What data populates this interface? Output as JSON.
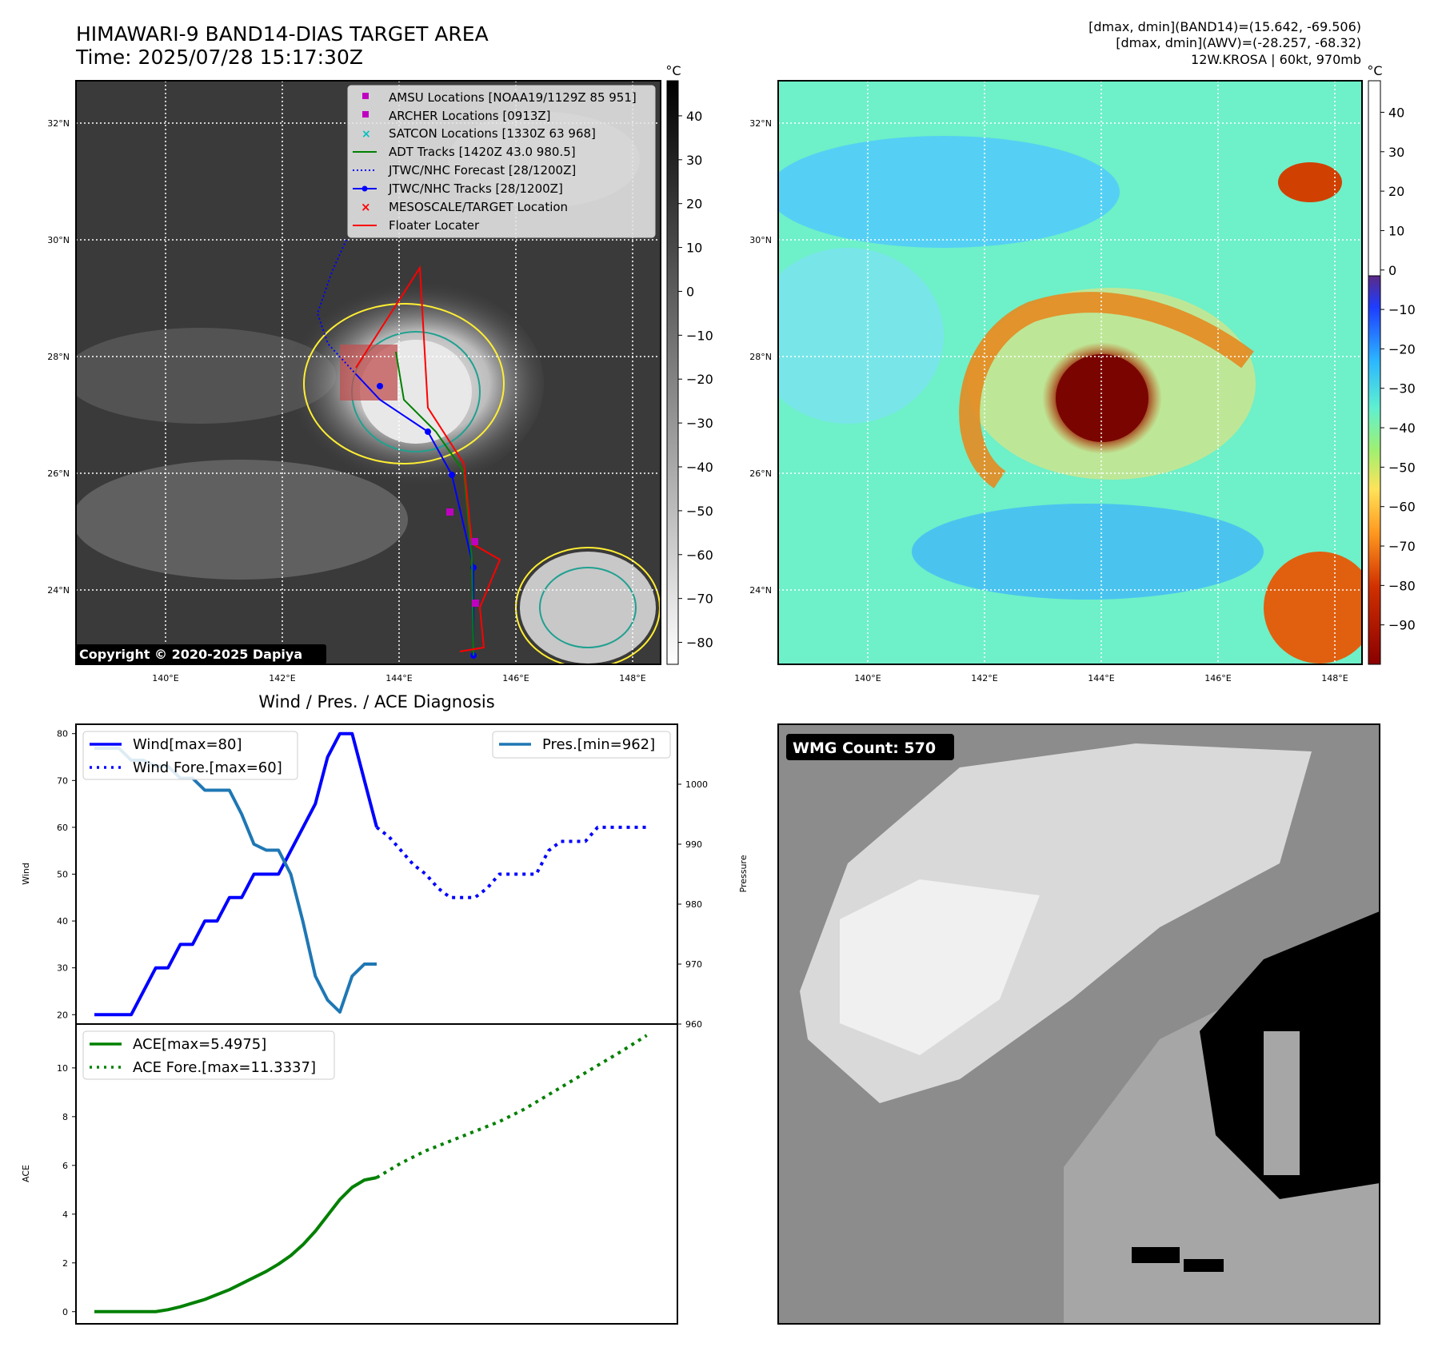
{
  "header": {
    "title": "HIMAWARI-9 BAND14-DIAS TARGET AREA",
    "time": "Time: 2025/07/28 15:17:30Z",
    "info_line1": "[dmax, dmin](BAND14)=(15.642, -69.506)",
    "info_line2": "[dmax, dmin](AWV)=(-28.257, -68.32)",
    "info_line3": "12W.KROSA | 60kt, 970mb"
  },
  "colors": {
    "wind": "#0000ff",
    "pressure": "#1f77b4",
    "ace": "#008000",
    "track_red": "#ff0000",
    "forecast_blue": "#0000ff",
    "adt_green": "#008000",
    "amsu_magenta": "#c000c0",
    "satcon_cyan": "#00c0c0"
  },
  "map_left": {
    "lat_labels": [
      "32°N",
      "30°N",
      "28°N",
      "26°N",
      "24°N"
    ],
    "lon_labels": [
      "140°E",
      "142°E",
      "144°E",
      "146°E",
      "148°E"
    ],
    "colorbar_unit": "°C",
    "colorbar_ticks": [
      "40",
      "30",
      "20",
      "10",
      "0",
      "−10",
      "−20",
      "−30",
      "−40",
      "−50",
      "−60",
      "−70",
      "−80"
    ],
    "copyright": "Copyright © 2020-2025 Dapiya",
    "legend": [
      "AMSU Locations [NOAA19/1129Z 85 951]",
      "ARCHER Locations [0913Z]",
      "SATCON Locations [1330Z 63 968]",
      "ADT Tracks [1420Z 43.0 980.5]",
      "JTWC/NHC Forecast [28/1200Z]",
      "JTWC/NHC Tracks [28/1200Z]",
      "MESOSCALE/TARGET Location",
      "Floater Locater"
    ]
  },
  "map_right": {
    "lat_labels": [
      "32°N",
      "30°N",
      "28°N",
      "26°N",
      "24°N"
    ],
    "lon_labels": [
      "140°E",
      "142°E",
      "144°E",
      "146°E",
      "148°E"
    ],
    "colorbar_unit": "°C",
    "colorbar_ticks": [
      "40",
      "30",
      "20",
      "10",
      "0",
      "−10",
      "−20",
      "−30",
      "−40",
      "−50",
      "−60",
      "−70",
      "−80",
      "−90"
    ]
  },
  "wind_panel": {
    "title": "Wind / Pres. / ACE Diagnosis",
    "ylabel_left": "Wind",
    "ylabel_right": "Pressure",
    "legend_wind": "Wind[max=80]",
    "legend_wind_fore": "Wind Fore.[max=60]",
    "legend_pres": "Pres.[min=962]"
  },
  "ace_panel": {
    "ylabel": "ACE",
    "legend_ace": "ACE[max=5.4975]",
    "legend_ace_fore": "ACE Fore.[max=11.3337]"
  },
  "wmg_panel": {
    "label": "WMG Count: 570"
  },
  "chart_data": [
    {
      "type": "line",
      "title": "Wind / Pres. / ACE Diagnosis",
      "ylabel": "Wind",
      "ylim": [
        18,
        82
      ],
      "y_ticks": [
        20,
        30,
        40,
        50,
        60,
        70,
        80
      ],
      "x": [
        0,
        1,
        2,
        3,
        4,
        5,
        6,
        7,
        8,
        9,
        10,
        11,
        12,
        13,
        14,
        15,
        16,
        17,
        18,
        19,
        20,
        21,
        22,
        23,
        24,
        25,
        26,
        27,
        28,
        29,
        30,
        31,
        32,
        33,
        34,
        35,
        36,
        37,
        38,
        39,
        40,
        41,
        42,
        43,
        44,
        45
      ],
      "series": [
        {
          "name": "Wind[max=80]",
          "style": "solid",
          "x": [
            0,
            1,
            2,
            3,
            4,
            5,
            6,
            7,
            8,
            9,
            10,
            11,
            12,
            13,
            14,
            15,
            16,
            17,
            18,
            19,
            20,
            21,
            22,
            23
          ],
          "values": [
            20,
            20,
            20,
            20,
            25,
            30,
            30,
            35,
            35,
            40,
            40,
            45,
            45,
            50,
            50,
            50,
            55,
            60,
            65,
            75,
            80,
            80,
            70,
            60
          ]
        },
        {
          "name": "Wind Fore.[max=60]",
          "style": "dotted",
          "x": [
            23,
            24,
            25,
            26,
            27,
            28,
            29,
            30,
            31,
            32,
            33,
            34,
            35,
            36,
            37,
            38,
            39,
            40,
            41,
            42,
            43,
            44,
            45
          ],
          "values": [
            60,
            58,
            55,
            52,
            50,
            47,
            45,
            45,
            45,
            47,
            50,
            50,
            50,
            50,
            55,
            57,
            57,
            57,
            60,
            60,
            60,
            60,
            60
          ]
        },
        {
          "name": "Pres.[min=962]",
          "style": "solid",
          "axis": "right",
          "ylim": [
            960,
            1010
          ],
          "y_ticks": [
            960,
            970,
            980,
            990,
            1000
          ],
          "x": [
            0,
            1,
            2,
            3,
            4,
            5,
            6,
            7,
            8,
            9,
            10,
            11,
            12,
            13,
            14,
            15,
            16,
            17,
            18,
            19,
            20,
            21,
            22,
            23
          ],
          "values": [
            1006,
            1006,
            1006,
            1004,
            1004,
            1003,
            1003,
            1001,
            1001,
            999,
            999,
            999,
            995,
            990,
            989,
            989,
            985,
            977,
            968,
            964,
            962,
            968,
            970,
            970
          ]
        }
      ]
    },
    {
      "type": "line",
      "ylabel": "ACE",
      "ylim": [
        -0.5,
        11.8
      ],
      "y_ticks": [
        0,
        2,
        4,
        6,
        8,
        10
      ],
      "series": [
        {
          "name": "ACE[max=5.4975]",
          "style": "solid",
          "x": [
            0,
            1,
            2,
            3,
            4,
            5,
            6,
            7,
            8,
            9,
            10,
            11,
            12,
            13,
            14,
            15,
            16,
            17,
            18,
            19,
            20,
            21,
            22,
            23
          ],
          "values": [
            0,
            0,
            0,
            0,
            0,
            0,
            0.08,
            0.2,
            0.35,
            0.5,
            0.7,
            0.9,
            1.15,
            1.4,
            1.65,
            1.95,
            2.3,
            2.75,
            3.3,
            3.95,
            4.6,
            5.1,
            5.4,
            5.4975
          ]
        },
        {
          "name": "ACE Fore.[max=11.3337]",
          "style": "dotted",
          "x": [
            23,
            25,
            27,
            29,
            31,
            33,
            35,
            37,
            39,
            41,
            43,
            45
          ],
          "values": [
            5.4975,
            6.1,
            6.6,
            7.0,
            7.4,
            7.8,
            8.3,
            8.9,
            9.5,
            10.1,
            10.7,
            11.3337
          ]
        }
      ]
    }
  ]
}
